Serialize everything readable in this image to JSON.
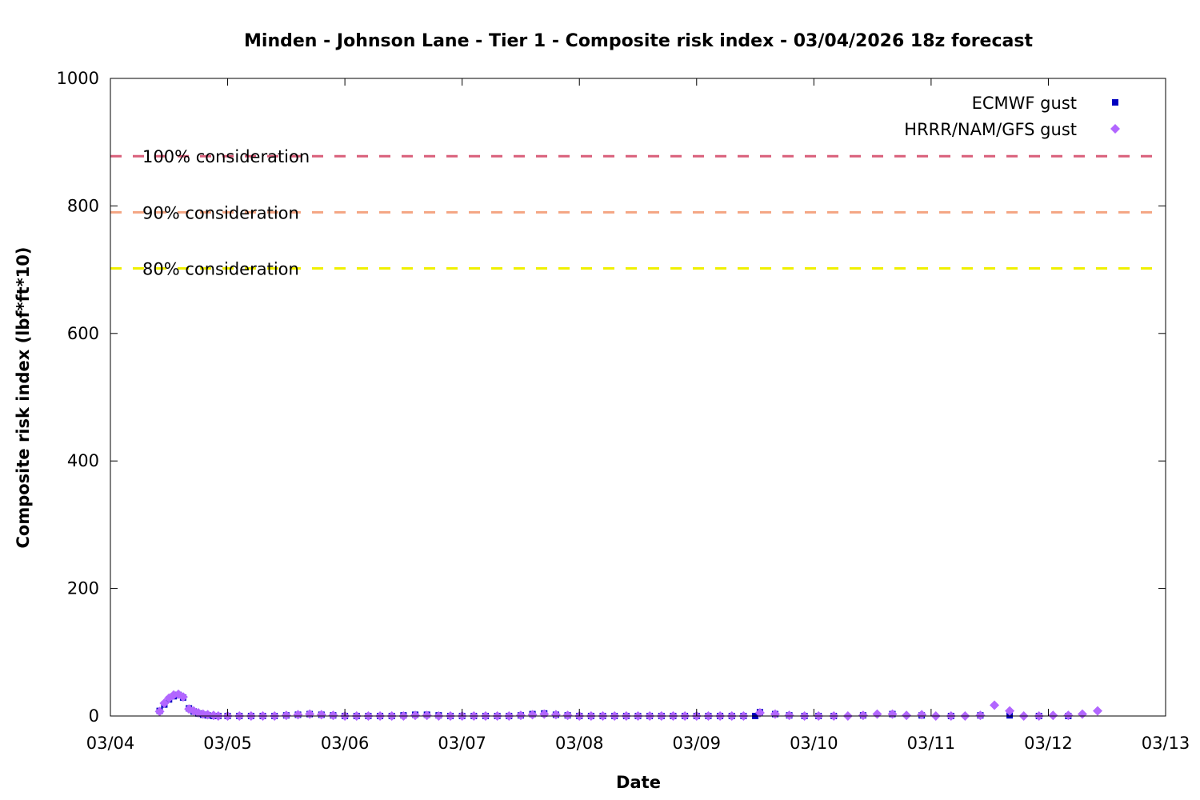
{
  "chart_data": {
    "type": "scatter",
    "title": "Minden - Johnson Lane - Tier 1 - Composite risk index - 03/04/2026 18z forecast",
    "xlabel": "Date",
    "ylabel": "Composite risk index (lbf*ft*10)",
    "x_tick_labels": [
      "03/04",
      "03/05",
      "03/06",
      "03/07",
      "03/08",
      "03/09",
      "03/10",
      "03/11",
      "03/12",
      "03/13"
    ],
    "x_range_days": [
      0,
      9
    ],
    "y_ticks": [
      0,
      200,
      400,
      600,
      800,
      1000
    ],
    "ylim": [
      0,
      1000
    ],
    "grid": false,
    "legend_position": "top-right",
    "reference_lines": [
      {
        "label": "100% consideration",
        "value": 878,
        "color": "#d95f7a"
      },
      {
        "label": "90% consideration",
        "value": 790,
        "color": "#f4a582"
      },
      {
        "label": "80% consideration",
        "value": 702,
        "color": "#f0f000"
      }
    ],
    "series": [
      {
        "name": "ECMWF gust",
        "marker": "square",
        "color": "#0000c0",
        "points": [
          [
            0.42,
            8
          ],
          [
            0.46,
            18
          ],
          [
            0.5,
            26
          ],
          [
            0.54,
            31
          ],
          [
            0.58,
            33
          ],
          [
            0.62,
            29
          ],
          [
            0.67,
            12
          ],
          [
            0.71,
            7
          ],
          [
            0.75,
            4
          ],
          [
            0.79,
            2
          ],
          [
            0.83,
            1
          ],
          [
            0.88,
            0
          ],
          [
            0.92,
            0
          ],
          [
            1.0,
            0
          ],
          [
            1.1,
            0
          ],
          [
            1.2,
            0
          ],
          [
            1.3,
            0
          ],
          [
            1.4,
            0
          ],
          [
            1.5,
            1
          ],
          [
            1.6,
            2
          ],
          [
            1.7,
            3
          ],
          [
            1.8,
            2
          ],
          [
            1.9,
            1
          ],
          [
            2.0,
            0
          ],
          [
            2.1,
            0
          ],
          [
            2.2,
            0
          ],
          [
            2.3,
            0
          ],
          [
            2.4,
            0
          ],
          [
            2.5,
            1
          ],
          [
            2.6,
            2
          ],
          [
            2.7,
            2
          ],
          [
            2.8,
            1
          ],
          [
            2.9,
            0
          ],
          [
            3.0,
            0
          ],
          [
            3.1,
            0
          ],
          [
            3.2,
            0
          ],
          [
            3.3,
            0
          ],
          [
            3.4,
            0
          ],
          [
            3.5,
            1
          ],
          [
            3.6,
            3
          ],
          [
            3.7,
            4
          ],
          [
            3.8,
            2
          ],
          [
            3.9,
            1
          ],
          [
            4.0,
            0
          ],
          [
            4.1,
            0
          ],
          [
            4.2,
            0
          ],
          [
            4.3,
            0
          ],
          [
            4.4,
            0
          ],
          [
            4.5,
            0
          ],
          [
            4.6,
            0
          ],
          [
            4.7,
            0
          ],
          [
            4.8,
            0
          ],
          [
            4.9,
            0
          ],
          [
            5.0,
            0
          ],
          [
            5.1,
            0
          ],
          [
            5.2,
            0
          ],
          [
            5.3,
            0
          ],
          [
            5.4,
            0
          ],
          [
            5.5,
            0
          ],
          [
            5.54,
            6
          ],
          [
            5.67,
            3
          ],
          [
            5.79,
            1
          ],
          [
            5.92,
            0
          ],
          [
            6.04,
            0
          ],
          [
            6.17,
            0
          ],
          [
            6.42,
            1
          ],
          [
            6.67,
            3
          ],
          [
            6.92,
            1
          ],
          [
            7.17,
            0
          ],
          [
            7.42,
            1
          ],
          [
            7.67,
            1
          ],
          [
            7.92,
            0
          ],
          [
            8.17,
            0
          ]
        ]
      },
      {
        "name": "HRRR/NAM/GFS gust",
        "marker": "diamond",
        "color": "#b266ff",
        "points": [
          [
            0.42,
            7
          ],
          [
            0.46,
            20
          ],
          [
            0.5,
            28
          ],
          [
            0.54,
            33
          ],
          [
            0.58,
            34
          ],
          [
            0.62,
            30
          ],
          [
            0.67,
            11
          ],
          [
            0.71,
            8
          ],
          [
            0.75,
            5
          ],
          [
            0.79,
            3
          ],
          [
            0.83,
            2
          ],
          [
            0.88,
            1
          ],
          [
            0.92,
            0
          ],
          [
            1.0,
            0
          ],
          [
            1.1,
            0
          ],
          [
            1.2,
            0
          ],
          [
            1.3,
            0
          ],
          [
            1.4,
            0
          ],
          [
            1.5,
            1
          ],
          [
            1.6,
            2
          ],
          [
            1.7,
            3
          ],
          [
            1.8,
            2
          ],
          [
            1.9,
            1
          ],
          [
            2.0,
            0
          ],
          [
            2.1,
            0
          ],
          [
            2.2,
            0
          ],
          [
            2.3,
            0
          ],
          [
            2.4,
            0
          ],
          [
            2.5,
            0
          ],
          [
            2.6,
            1
          ],
          [
            2.7,
            1
          ],
          [
            2.8,
            0
          ],
          [
            2.9,
            0
          ],
          [
            3.0,
            0
          ],
          [
            3.1,
            0
          ],
          [
            3.2,
            0
          ],
          [
            3.3,
            0
          ],
          [
            3.4,
            0
          ],
          [
            3.5,
            1
          ],
          [
            3.6,
            2
          ],
          [
            3.7,
            3
          ],
          [
            3.8,
            2
          ],
          [
            3.9,
            1
          ],
          [
            4.0,
            0
          ],
          [
            4.1,
            0
          ],
          [
            4.2,
            0
          ],
          [
            4.3,
            0
          ],
          [
            4.4,
            0
          ],
          [
            4.5,
            0
          ],
          [
            4.6,
            0
          ],
          [
            4.7,
            0
          ],
          [
            4.8,
            0
          ],
          [
            4.9,
            0
          ],
          [
            5.0,
            0
          ],
          [
            5.1,
            0
          ],
          [
            5.2,
            0
          ],
          [
            5.3,
            0
          ],
          [
            5.4,
            0
          ],
          [
            5.54,
            5
          ],
          [
            5.67,
            3
          ],
          [
            5.79,
            1
          ],
          [
            5.92,
            0
          ],
          [
            6.04,
            0
          ],
          [
            6.17,
            0
          ],
          [
            6.29,
            0
          ],
          [
            6.42,
            1
          ],
          [
            6.54,
            3
          ],
          [
            6.67,
            3
          ],
          [
            6.79,
            1
          ],
          [
            6.92,
            2
          ],
          [
            7.04,
            0
          ],
          [
            7.17,
            0
          ],
          [
            7.29,
            0
          ],
          [
            7.42,
            1
          ],
          [
            7.54,
            17
          ],
          [
            7.67,
            8
          ],
          [
            7.79,
            0
          ],
          [
            7.92,
            0
          ],
          [
            8.04,
            1
          ],
          [
            8.17,
            1
          ],
          [
            8.29,
            3
          ],
          [
            8.42,
            8
          ]
        ]
      }
    ]
  }
}
